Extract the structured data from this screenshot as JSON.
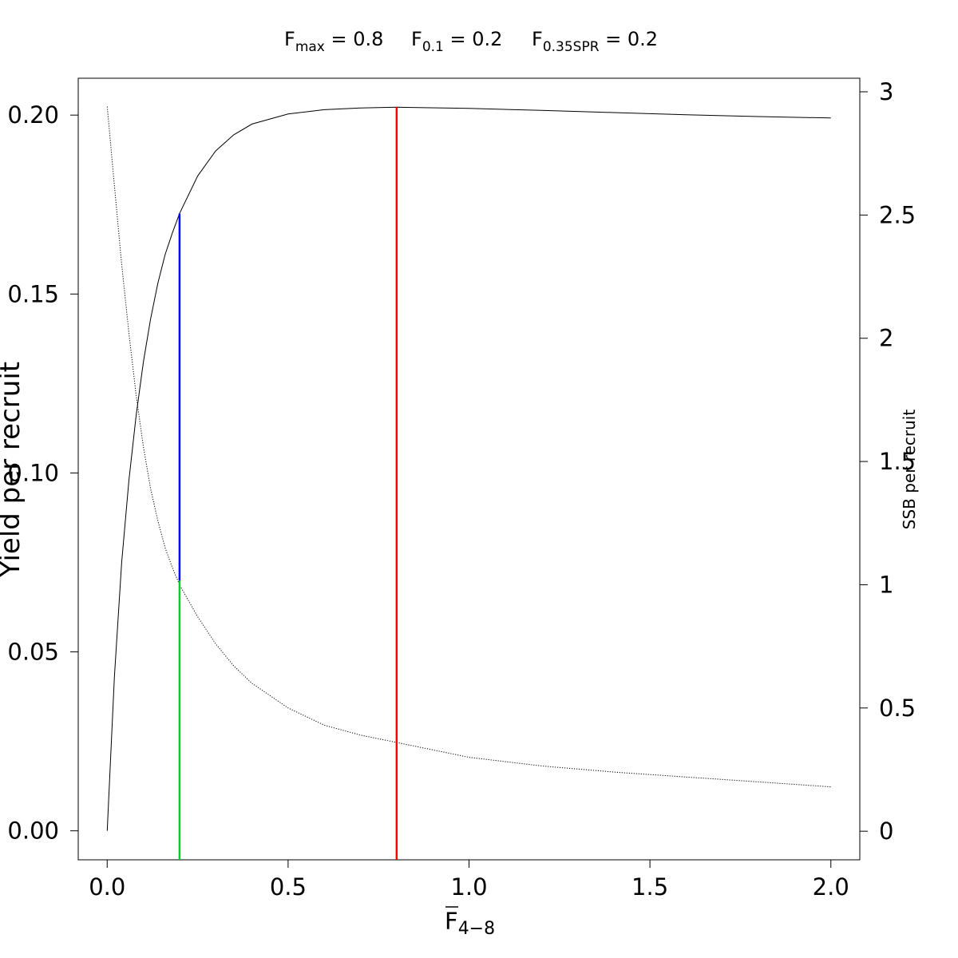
{
  "header": {
    "items": [
      {
        "symbol": "F",
        "subscript": "max",
        "value_text": " = 0.8"
      },
      {
        "symbol": "F",
        "subscript": "0.1",
        "value_text": " = 0.2"
      },
      {
        "symbol": "F",
        "subscript": "0.35SPR",
        "value_text": " = 0.2"
      }
    ]
  },
  "chart_data": {
    "type": "line",
    "title": "",
    "xlabel": {
      "symbol": "F",
      "subscript": "4−8"
    },
    "ylabel": "Yield per recruit",
    "y2label": "SSB per recruit",
    "xlim": [
      -0.08,
      2.08
    ],
    "ylim": [
      -0.0081,
      0.2103
    ],
    "y2lim": [
      -0.116,
      3.055
    ],
    "x_ticks": [
      0.0,
      0.5,
      1.0,
      1.5,
      2.0
    ],
    "x_tick_labels": [
      "0.0",
      "0.5",
      "1.0",
      "1.5",
      "2.0"
    ],
    "y_ticks": [
      0.0,
      0.05,
      0.1,
      0.15,
      0.2
    ],
    "y_tick_labels": [
      "0.00",
      "0.05",
      "0.10",
      "0.15",
      "0.20"
    ],
    "y2_ticks": [
      0,
      0.5,
      1,
      1.5,
      2,
      2.5,
      3
    ],
    "y2_tick_labels": [
      "0",
      "0.5",
      "1",
      "1.5",
      "2",
      "2.5",
      "3"
    ],
    "grid": false,
    "series": [
      {
        "axis": "left",
        "style": "solid",
        "color": "#000000",
        "points": [
          [
            0.0,
            0.0
          ],
          [
            0.02,
            0.043
          ],
          [
            0.04,
            0.075
          ],
          [
            0.06,
            0.098
          ],
          [
            0.08,
            0.116
          ],
          [
            0.1,
            0.131
          ],
          [
            0.12,
            0.143
          ],
          [
            0.14,
            0.153
          ],
          [
            0.16,
            0.161
          ],
          [
            0.18,
            0.167
          ],
          [
            0.2,
            0.1725
          ],
          [
            0.25,
            0.183
          ],
          [
            0.3,
            0.19
          ],
          [
            0.35,
            0.1945
          ],
          [
            0.4,
            0.1975
          ],
          [
            0.5,
            0.2003
          ],
          [
            0.6,
            0.2015
          ],
          [
            0.7,
            0.202
          ],
          [
            0.8,
            0.2022
          ],
          [
            1.0,
            0.2019
          ],
          [
            1.2,
            0.2013
          ],
          [
            1.4,
            0.2007
          ],
          [
            1.6,
            0.2001
          ],
          [
            1.8,
            0.1996
          ],
          [
            2.0,
            0.1992
          ]
        ]
      },
      {
        "axis": "right",
        "style": "dotted",
        "color": "#000000",
        "points": [
          [
            0.0,
            2.94
          ],
          [
            0.02,
            2.62
          ],
          [
            0.04,
            2.3
          ],
          [
            0.06,
            2.02
          ],
          [
            0.08,
            1.77
          ],
          [
            0.1,
            1.56
          ],
          [
            0.12,
            1.39
          ],
          [
            0.14,
            1.26
          ],
          [
            0.16,
            1.15
          ],
          [
            0.18,
            1.07
          ],
          [
            0.2,
            1.0
          ],
          [
            0.25,
            0.87
          ],
          [
            0.3,
            0.76
          ],
          [
            0.35,
            0.67
          ],
          [
            0.4,
            0.6
          ],
          [
            0.5,
            0.5
          ],
          [
            0.6,
            0.43
          ],
          [
            0.7,
            0.39
          ],
          [
            0.8,
            0.36
          ],
          [
            1.0,
            0.3
          ],
          [
            1.2,
            0.265
          ],
          [
            1.4,
            0.24
          ],
          [
            1.6,
            0.22
          ],
          [
            1.8,
            0.2
          ],
          [
            2.0,
            0.18
          ]
        ]
      }
    ],
    "reference_lines": [
      {
        "name": "fmax-line",
        "x": 0.8,
        "y_bottom": -0.0081,
        "y_top": 0.2022,
        "color": "#ff0000"
      },
      {
        "name": "f01-line",
        "x": 0.2,
        "y_bottom": 0.0699,
        "y_top": 0.1725,
        "color": "#0000ff"
      },
      {
        "name": "fspr-line",
        "x": 0.2,
        "y_bottom": -0.0081,
        "y_top": 0.0699,
        "color": "#00cc33"
      }
    ]
  }
}
